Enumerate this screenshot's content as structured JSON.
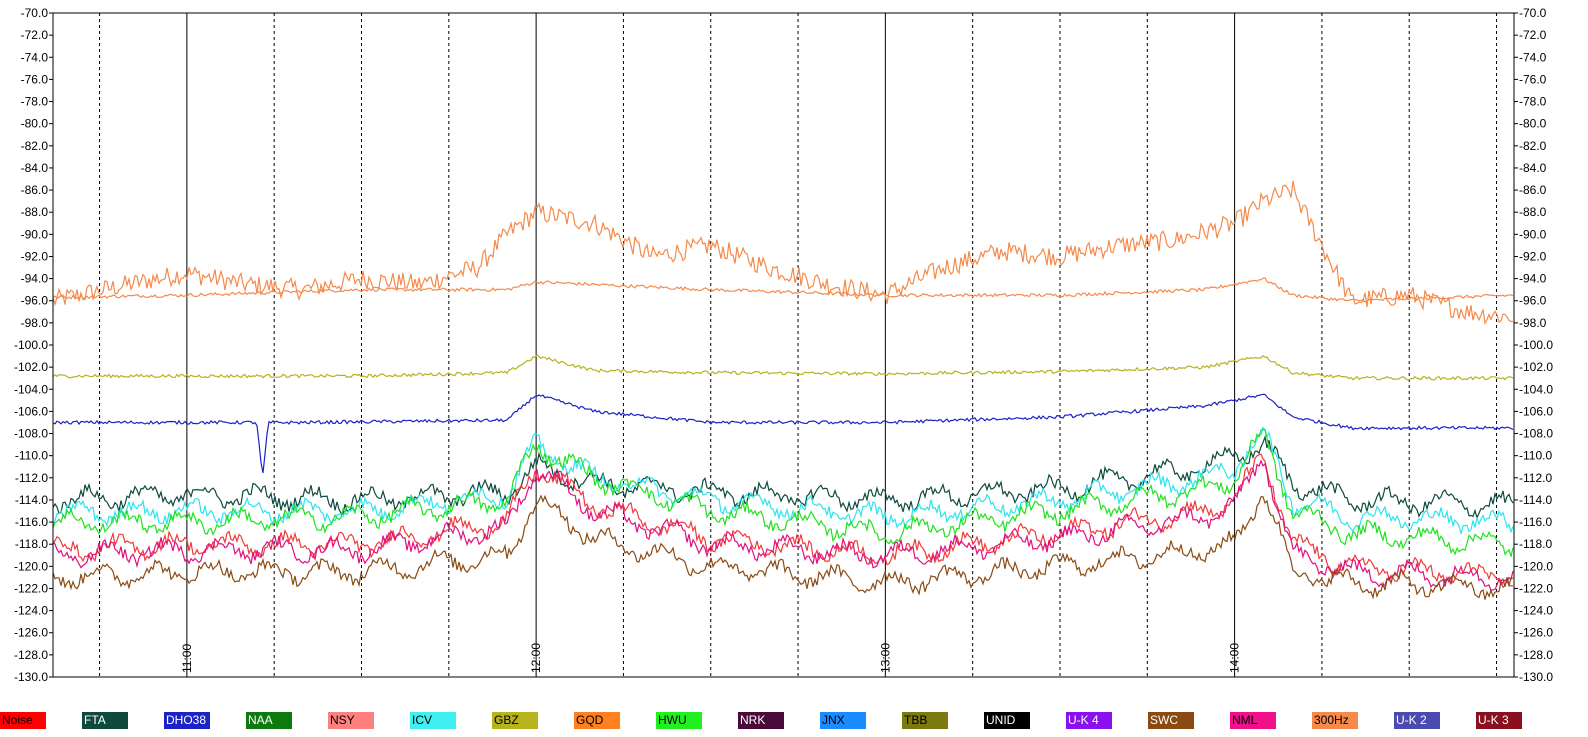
{
  "chart_data": {
    "type": "line",
    "title": "",
    "xlabel": "",
    "ylabel": "",
    "ylim": [
      -130,
      -70
    ],
    "x_time_range": [
      "10:37",
      "14:48"
    ],
    "yticks": [
      "-70.0",
      "-72.0",
      "-74.0",
      "-76.0",
      "-78.0",
      "-80.0",
      "-82.0",
      "-84.0",
      "-86.0",
      "-88.0",
      "-90.0",
      "-92.0",
      "-94.0",
      "-96.0",
      "-98.0",
      "-100.0",
      "-102.0",
      "-104.0",
      "-106.0",
      "-108.0",
      "-110.0",
      "-112.0",
      "-114.0",
      "-116.0",
      "-118.0",
      "-120.0",
      "-122.0",
      "-124.0",
      "-126.0",
      "-128.0",
      "-130.0"
    ],
    "xticks": [
      {
        "label": "11:00",
        "time": "11:00"
      },
      {
        "label": "12:00",
        "time": "12:00"
      },
      {
        "label": "13:00",
        "time": "13:00"
      },
      {
        "label": "14:00",
        "time": "14:00"
      }
    ],
    "minor_gridlines_minutes": 15,
    "grid": true,
    "legend_position": "bottom",
    "series": [
      {
        "name": "300Hz",
        "color": "#f58a4b",
        "times": [
          "10:37",
          "10:50",
          "11:00",
          "11:10",
          "11:20",
          "11:30",
          "11:40",
          "11:50",
          "11:55",
          "12:00",
          "12:10",
          "12:20",
          "12:30",
          "12:40",
          "12:50",
          "13:00",
          "13:10",
          "13:20",
          "13:30",
          "13:40",
          "13:50",
          "14:00",
          "14:05",
          "14:10",
          "14:20",
          "14:30",
          "14:40",
          "14:48"
        ],
        "values": [
          -96,
          -94.5,
          -93.5,
          -94.5,
          -95,
          -94,
          -94.5,
          -93,
          -90,
          -88,
          -89,
          -92,
          -91,
          -93,
          -94.5,
          -95.5,
          -93,
          -91.5,
          -92,
          -91,
          -90.5,
          -89,
          -87,
          -86,
          -96,
          -95.5,
          -97,
          -97.5
        ]
      },
      {
        "name": "Noise",
        "color": "#f58a4b",
        "times": [
          "10:37",
          "11:00",
          "11:30",
          "11:55",
          "12:00",
          "12:30",
          "13:00",
          "13:30",
          "13:55",
          "14:05",
          "14:10",
          "14:20",
          "14:48"
        ],
        "values": [
          -95.7,
          -95.5,
          -95,
          -95,
          -94.3,
          -95,
          -95.5,
          -95.5,
          -95,
          -94,
          -95.5,
          -96,
          -95.5
        ]
      },
      {
        "name": "GBZ",
        "color": "#b6b31c",
        "times": [
          "10:37",
          "11:00",
          "11:30",
          "11:55",
          "12:00",
          "12:10",
          "12:30",
          "13:00",
          "13:30",
          "13:55",
          "14:00",
          "14:05",
          "14:10",
          "14:20",
          "14:48"
        ],
        "values": [
          -102.8,
          -102.8,
          -102.8,
          -102.5,
          -101,
          -102.3,
          -102.5,
          -102.6,
          -102.4,
          -102,
          -101.5,
          -101,
          -102.5,
          -103,
          -103
        ]
      },
      {
        "name": "DHO38",
        "color": "#1c22c6",
        "times": [
          "10:37",
          "11:10",
          "11:12",
          "11:13",
          "11:14",
          "11:20",
          "11:55",
          "12:00",
          "12:10",
          "12:30",
          "13:00",
          "13:30",
          "13:55",
          "14:00",
          "14:05",
          "14:10",
          "14:20",
          "14:48"
        ],
        "values": [
          -107,
          -107,
          -107,
          -112,
          -107,
          -107,
          -106.8,
          -104.5,
          -106,
          -107,
          -107,
          -106.5,
          -105.5,
          -105,
          -104.5,
          -106.5,
          -107.5,
          -107.5
        ]
      },
      {
        "name": "FTA",
        "color": "#0e4a3c",
        "times": [
          "10:37",
          "11:00",
          "11:30",
          "11:55",
          "12:00",
          "12:10",
          "12:30",
          "13:00",
          "13:30",
          "13:55",
          "14:00",
          "14:05",
          "14:10",
          "14:20",
          "14:48"
        ],
        "values": [
          -114,
          -113.5,
          -114,
          -113.3,
          -111,
          -112.5,
          -113.3,
          -114,
          -113,
          -111,
          -110,
          -109,
          -112.5,
          -114,
          -114.5
        ]
      },
      {
        "name": "ICV",
        "color": "#2ce4ee",
        "times": [
          "10:37",
          "11:00",
          "11:30",
          "11:55",
          "12:00",
          "12:10",
          "12:30",
          "13:00",
          "13:30",
          "13:55",
          "14:00",
          "14:05",
          "14:10",
          "14:20",
          "14:48"
        ],
        "values": [
          -115.2,
          -115,
          -115,
          -113.5,
          -109,
          -112,
          -114,
          -115.5,
          -114,
          -112,
          -111,
          -108,
          -114,
          -115.5,
          -116
        ]
      },
      {
        "name": "HWU",
        "color": "#1fe21f",
        "times": [
          "10:37",
          "11:00",
          "11:30",
          "11:55",
          "12:00",
          "12:10",
          "12:30",
          "13:00",
          "13:30",
          "13:55",
          "14:00",
          "14:05",
          "14:10",
          "14:20",
          "14:48"
        ],
        "values": [
          -116,
          -116,
          -115.5,
          -114,
          -109,
          -112,
          -115,
          -117,
          -115,
          -113,
          -112,
          -108,
          -115,
          -117,
          -118
        ]
      },
      {
        "name": "NSY",
        "color": "#f03a3a",
        "times": [
          "10:37",
          "11:00",
          "11:30",
          "11:55",
          "12:00",
          "12:10",
          "12:30",
          "13:00",
          "13:30",
          "13:55",
          "14:00",
          "14:05",
          "14:10",
          "14:20",
          "14:48"
        ],
        "values": [
          -118.5,
          -118,
          -118,
          -116,
          -111,
          -114.5,
          -117.5,
          -119,
          -117,
          -115,
          -114,
          -110,
          -118,
          -120,
          -121
        ]
      },
      {
        "name": "NML",
        "color": "#e0117f",
        "times": [
          "10:37",
          "11:00",
          "11:30",
          "11:55",
          "12:00",
          "12:10",
          "12:30",
          "13:00",
          "13:30",
          "13:55",
          "14:00",
          "14:05",
          "14:10",
          "14:20",
          "14:48"
        ],
        "values": [
          -119,
          -118.5,
          -118.5,
          -116.5,
          -111,
          -115,
          -118,
          -119,
          -117.5,
          -115.5,
          -114.5,
          -110,
          -119,
          -120.5,
          -121
        ]
      },
      {
        "name": "SWC",
        "color": "#8a4a12",
        "times": [
          "10:37",
          "11:00",
          "11:30",
          "11:55",
          "12:00",
          "12:10",
          "12:30",
          "13:00",
          "13:30",
          "13:55",
          "14:00",
          "14:05",
          "14:10",
          "14:20",
          "14:48"
        ],
        "values": [
          -121,
          -120.5,
          -120.5,
          -119,
          -114,
          -117.5,
          -120,
          -121.5,
          -120,
          -118.5,
          -118,
          -113,
          -120.5,
          -121.5,
          -122
        ]
      }
    ]
  },
  "legend": [
    {
      "label": "Noise",
      "bg": "#ff0000",
      "fg": "#000000"
    },
    {
      "label": "FTA",
      "bg": "#0e4a3c",
      "fg": "#ffffff"
    },
    {
      "label": "DHO38",
      "bg": "#1c22c6",
      "fg": "#ffffff"
    },
    {
      "label": "NAA",
      "bg": "#0e7a0e",
      "fg": "#ffffff"
    },
    {
      "label": "NSY",
      "bg": "#ff8080",
      "fg": "#000000"
    },
    {
      "label": "ICV",
      "bg": "#40f0f0",
      "fg": "#000000"
    },
    {
      "label": "GBZ",
      "bg": "#b6b31c",
      "fg": "#000000"
    },
    {
      "label": "GQD",
      "bg": "#ff8020",
      "fg": "#000000"
    },
    {
      "label": "HWU",
      "bg": "#20f020",
      "fg": "#000000"
    },
    {
      "label": "NRK",
      "bg": "#4a0a3a",
      "fg": "#ffffff"
    },
    {
      "label": "JNX",
      "bg": "#1a8cff",
      "fg": "#000000"
    },
    {
      "label": "TBB",
      "bg": "#7a7a10",
      "fg": "#000000"
    },
    {
      "label": "UNID",
      "bg": "#000000",
      "fg": "#ffffff"
    },
    {
      "label": "U-K 4",
      "bg": "#8a10f0",
      "fg": "#ffffff"
    },
    {
      "label": "SWC",
      "bg": "#8a4a12",
      "fg": "#ffffff"
    },
    {
      "label": "NML",
      "bg": "#f0108a",
      "fg": "#000000"
    },
    {
      "label": "300Hz",
      "bg": "#f58a4b",
      "fg": "#000000"
    },
    {
      "label": "U-K 2",
      "bg": "#4a4ab0",
      "fg": "#ffffff"
    },
    {
      "label": "U-K 3",
      "bg": "#8a1020",
      "fg": "#ffffff"
    }
  ]
}
